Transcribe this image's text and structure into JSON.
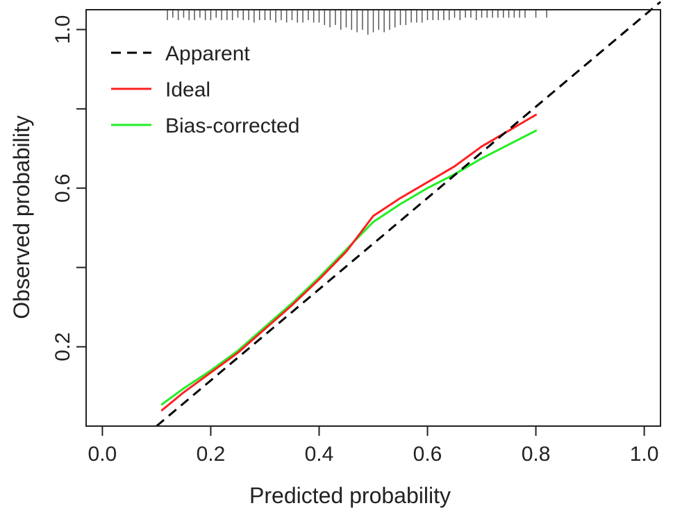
{
  "chart_data": {
    "type": "line",
    "title": "",
    "xlabel": "Predicted probability",
    "ylabel": "Observed probability",
    "xlim": [
      -0.03,
      1.03
    ],
    "ylim": [
      0.0,
      1.05
    ],
    "x_ticks": [
      0.0,
      0.2,
      0.4,
      0.6,
      0.8,
      1.0
    ],
    "x_tick_labels": [
      "0.0",
      "0.2",
      "0.4",
      "0.6",
      "0.8",
      "1.0"
    ],
    "y_ticks": [
      0.2,
      0.4,
      0.6,
      0.8,
      1.0
    ],
    "y_tick_labels": [
      "0.2",
      "",
      "0.6",
      "",
      "1.0"
    ],
    "grid": false,
    "legend_position": "top-left",
    "series": [
      {
        "name": "Apparent",
        "color": "#000000",
        "dash": "dashed",
        "x": [
          0.1,
          1.03
        ],
        "y": [
          0.0,
          1.07
        ]
      },
      {
        "name": "Ideal",
        "color": "#ff2020",
        "dash": "solid",
        "x": [
          0.11,
          0.15,
          0.2,
          0.25,
          0.3,
          0.35,
          0.4,
          0.45,
          0.5,
          0.55,
          0.6,
          0.65,
          0.7,
          0.75,
          0.8
        ],
        "y": [
          0.04,
          0.085,
          0.135,
          0.185,
          0.245,
          0.305,
          0.37,
          0.44,
          0.53,
          0.575,
          0.615,
          0.655,
          0.705,
          0.745,
          0.785
        ]
      },
      {
        "name": "Bias-corrected",
        "color": "#22ee22",
        "dash": "solid",
        "x": [
          0.11,
          0.15,
          0.2,
          0.25,
          0.3,
          0.35,
          0.4,
          0.45,
          0.5,
          0.55,
          0.6,
          0.65,
          0.7,
          0.75,
          0.8
        ],
        "y": [
          0.055,
          0.095,
          0.14,
          0.19,
          0.25,
          0.31,
          0.375,
          0.445,
          0.515,
          0.56,
          0.6,
          0.635,
          0.675,
          0.71,
          0.745
        ]
      }
    ],
    "rug": {
      "x": [
        0.12,
        0.13,
        0.14,
        0.15,
        0.16,
        0.17,
        0.18,
        0.19,
        0.2,
        0.21,
        0.22,
        0.23,
        0.24,
        0.25,
        0.26,
        0.27,
        0.28,
        0.29,
        0.3,
        0.31,
        0.32,
        0.33,
        0.34,
        0.35,
        0.36,
        0.37,
        0.38,
        0.39,
        0.4,
        0.41,
        0.42,
        0.43,
        0.44,
        0.45,
        0.46,
        0.47,
        0.48,
        0.49,
        0.5,
        0.51,
        0.52,
        0.53,
        0.54,
        0.55,
        0.56,
        0.57,
        0.58,
        0.59,
        0.6,
        0.61,
        0.62,
        0.63,
        0.64,
        0.65,
        0.66,
        0.67,
        0.68,
        0.69,
        0.7,
        0.71,
        0.72,
        0.73,
        0.74,
        0.75,
        0.76,
        0.77,
        0.78,
        0.8,
        0.82
      ],
      "counts": [
        2,
        1,
        2,
        1,
        2,
        2,
        1,
        2,
        2,
        1,
        2,
        2,
        2,
        1,
        2,
        2,
        3,
        2,
        2,
        2,
        3,
        2,
        3,
        2,
        3,
        3,
        2,
        3,
        3,
        4,
        5,
        4,
        6,
        5,
        6,
        7,
        6,
        8,
        7,
        6,
        7,
        6,
        5,
        4,
        4,
        3,
        3,
        3,
        2,
        2,
        2,
        2,
        2,
        1,
        2,
        1,
        1,
        2,
        1,
        1,
        1,
        1,
        1,
        1,
        1,
        1,
        1,
        1,
        1
      ]
    }
  }
}
